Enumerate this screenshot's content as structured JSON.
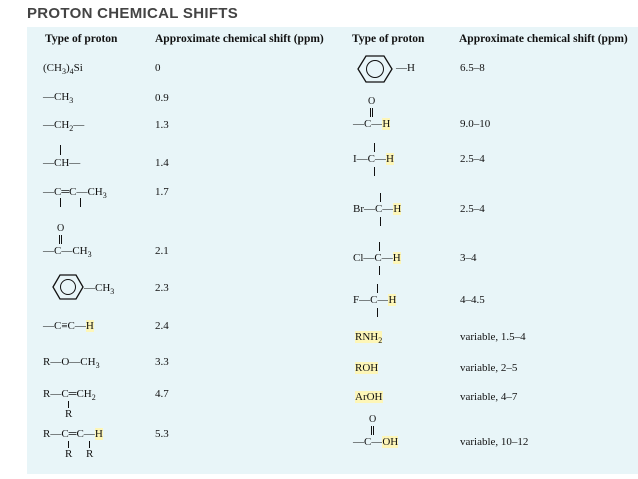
{
  "title": "PROTON CHEMICAL SHIFTS",
  "headers": {
    "type_left": "Type of proton",
    "shift_left": "Approximate chemical shift (ppm)",
    "type_right": "Type of proton",
    "shift_right": "Approximate chemical shift (ppm)"
  },
  "left_rows": [
    {
      "proton": "(CH3)4Si",
      "shift": "0"
    },
    {
      "proton": "—CH3",
      "shift": "0.9"
    },
    {
      "proton": "—CH2—",
      "shift": "1.3"
    },
    {
      "proton": "—CH—",
      "shift": "1.4"
    },
    {
      "proton": "—C=C—CH3",
      "shift": "1.7"
    },
    {
      "proton": "—C(=O)—CH3",
      "shift": "2.1"
    },
    {
      "proton": "benzene-CH3",
      "shift": "2.3"
    },
    {
      "proton": "—C≡C—H",
      "shift": "2.4"
    },
    {
      "proton": "R—O—CH3",
      "shift": "3.3"
    },
    {
      "proton": "R—C(R)=CH2",
      "shift": "4.7"
    },
    {
      "proton": "R—C(R)=C(R)—H",
      "shift": "5.3"
    }
  ],
  "right_rows": [
    {
      "proton": "benzene-H",
      "shift": "6.5–8"
    },
    {
      "proton": "—C(=O)—H",
      "shift": "9.0–10"
    },
    {
      "proton": "I—C—H",
      "shift": "2.5–4"
    },
    {
      "proton": "Br—C—H",
      "shift": "2.5–4"
    },
    {
      "proton": "Cl—C—H",
      "shift": "3–4"
    },
    {
      "proton": "F—C—H",
      "shift": "4–4.5"
    },
    {
      "proton": "RNH2",
      "shift": "variable, 1.5–4"
    },
    {
      "proton": "ROH",
      "shift": "variable, 2–5"
    },
    {
      "proton": "ArOH",
      "shift": "variable, 4–7"
    },
    {
      "proton": "—C(=O)—OH",
      "shift": "variable, 10–12"
    }
  ],
  "labels": {
    "tms_a": "(CH",
    "tms_sub3": "3",
    "tms_b": ")",
    "tms_sub4": "4",
    "tms_c": "Si",
    "ch3": "—CH",
    "ch3_sub": "3",
    "ch2": "—CH",
    "ch2_sub": "2",
    "ch2_tail": "—",
    "ch": "—CH—",
    "ene_ch3": "—C═C—CH",
    "ene_ch3_sub": "3",
    "co_ch3": "—C—CH",
    "co_ch3_sub": "3",
    "o": "O",
    "ar_ch3": "—CH",
    "ar_ch3_sub": "3",
    "alkyne": "—C≡C—",
    "h": "H",
    "ether": "R—O—CH",
    "ether_sub": "3",
    "vinyl": "R—C═CH",
    "vinyl_sub": "2",
    "r": "R",
    "alkene": "R—C═C—",
    "ar_h": "—H",
    "ald": "—C—",
    "iodo": "I—C—",
    "bromo": "Br—C—",
    "chloro": "Cl—C—",
    "fluoro": "F—C—",
    "rnh": "RNH",
    "rnh_sub": "2",
    "roh": "ROH",
    "aroh": "ArOH",
    "acid": "—C—",
    "oh": "OH"
  }
}
